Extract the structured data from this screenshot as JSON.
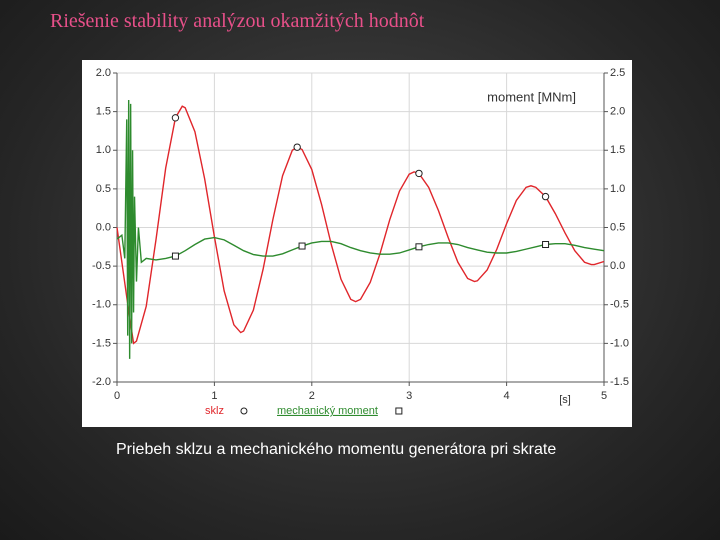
{
  "slide": {
    "title": "Riešenie stability analýzou okamžitých hodnôt",
    "caption": "Priebeh sklzu a mechanického momentu generátora pri skrate"
  },
  "chart_data": {
    "type": "line",
    "y2_label": "moment [MNm]",
    "x_label": "[s]",
    "xlim": [
      0,
      5
    ],
    "xticks": [
      0,
      1,
      2,
      3,
      4,
      5
    ],
    "ylim": [
      -2,
      2
    ],
    "yticks": [
      {
        "value": -2,
        "label": "-2.0"
      },
      {
        "value": -1.5,
        "label": "-1.5"
      },
      {
        "value": -1,
        "label": "-1.0"
      },
      {
        "value": -0.5,
        "label": "-0.5"
      },
      {
        "value": 0,
        "label": "0.0"
      },
      {
        "value": 0.5,
        "label": "0.5"
      },
      {
        "value": 1,
        "label": "1.0"
      },
      {
        "value": 1.5,
        "label": "1.5"
      },
      {
        "value": 2,
        "label": "2.0"
      }
    ],
    "y2lim": [
      -1.5,
      2.5
    ],
    "y2ticks": [
      {
        "value": -1.5,
        "label": "-1.5"
      },
      {
        "value": -1,
        "label": "-1.0"
      },
      {
        "value": -0.5,
        "label": "-0.5"
      },
      {
        "value": 0,
        "label": "0.0"
      },
      {
        "value": 0.5,
        "label": "0.5"
      },
      {
        "value": 1,
        "label": "1.0"
      },
      {
        "value": 1.5,
        "label": "1.5"
      },
      {
        "value": 2,
        "label": "2.0"
      },
      {
        "value": 2.5,
        "label": "2.5"
      }
    ],
    "grid": true,
    "series": [
      {
        "name": "sklz",
        "color": "#e0262b",
        "marker": "circle",
        "x": [
          0,
          0.1,
          0.17,
          0.2,
          0.3,
          0.4,
          0.5,
          0.6,
          0.67,
          0.7,
          0.8,
          0.9,
          1.0,
          1.1,
          1.2,
          1.27,
          1.3,
          1.4,
          1.5,
          1.6,
          1.7,
          1.8,
          1.85,
          1.9,
          2.0,
          2.1,
          2.2,
          2.3,
          2.4,
          2.45,
          2.5,
          2.6,
          2.7,
          2.8,
          2.9,
          3.0,
          3.05,
          3.1,
          3.2,
          3.3,
          3.4,
          3.5,
          3.6,
          3.67,
          3.7,
          3.8,
          3.9,
          4.0,
          4.1,
          4.2,
          4.25,
          4.3,
          4.4,
          4.5,
          4.6,
          4.7,
          4.8,
          4.87,
          4.9,
          5.0
        ],
        "values": [
          0,
          -0.9,
          -1.5,
          -1.47,
          -1.02,
          -0.16,
          0.77,
          1.42,
          1.57,
          1.55,
          1.24,
          0.63,
          -0.12,
          -0.82,
          -1.26,
          -1.36,
          -1.34,
          -1.07,
          -0.54,
          0.1,
          0.67,
          1.0,
          1.04,
          1.01,
          0.75,
          0.3,
          -0.22,
          -0.67,
          -0.93,
          -0.96,
          -0.93,
          -0.71,
          -0.34,
          0.1,
          0.47,
          0.69,
          0.72,
          0.7,
          0.52,
          0.22,
          -0.13,
          -0.45,
          -0.66,
          -0.7,
          -0.69,
          -0.55,
          -0.28,
          0.05,
          0.35,
          0.52,
          0.54,
          0.52,
          0.4,
          0.18,
          -0.07,
          -0.3,
          -0.45,
          -0.48,
          -0.48,
          -0.44
        ]
      },
      {
        "name": "mechanický moment",
        "color": "#2e8b2e",
        "marker": "square",
        "axis": "y2",
        "x": [
          0,
          0.05,
          0.08,
          0.1,
          0.11,
          0.12,
          0.13,
          0.14,
          0.15,
          0.16,
          0.17,
          0.18,
          0.2,
          0.22,
          0.25,
          0.3,
          0.4,
          0.5,
          0.6,
          0.7,
          0.8,
          0.9,
          1.0,
          1.1,
          1.2,
          1.3,
          1.4,
          1.5,
          1.6,
          1.7,
          1.8,
          1.9,
          2.0,
          2.1,
          2.2,
          2.3,
          2.4,
          2.5,
          2.6,
          2.7,
          2.8,
          2.9,
          3.0,
          3.1,
          3.2,
          3.3,
          3.4,
          3.5,
          3.6,
          3.7,
          3.8,
          3.9,
          4.0,
          4.1,
          4.2,
          4.3,
          4.4,
          4.5,
          4.6,
          4.7,
          4.8,
          4.9,
          5.0
        ],
        "values": [
          0.35,
          0.4,
          0.1,
          1.9,
          -0.9,
          2.15,
          -1.2,
          2.1,
          -1.0,
          1.5,
          -0.6,
          0.9,
          -0.2,
          0.5,
          0.05,
          0.1,
          0.08,
          0.1,
          0.13,
          0.2,
          0.28,
          0.35,
          0.37,
          0.34,
          0.27,
          0.2,
          0.15,
          0.13,
          0.13,
          0.16,
          0.21,
          0.26,
          0.3,
          0.32,
          0.32,
          0.29,
          0.24,
          0.2,
          0.17,
          0.155,
          0.155,
          0.17,
          0.21,
          0.25,
          0.28,
          0.3,
          0.3,
          0.28,
          0.24,
          0.21,
          0.18,
          0.17,
          0.17,
          0.19,
          0.22,
          0.25,
          0.28,
          0.29,
          0.29,
          0.27,
          0.24,
          0.22,
          0.2
        ]
      }
    ]
  }
}
